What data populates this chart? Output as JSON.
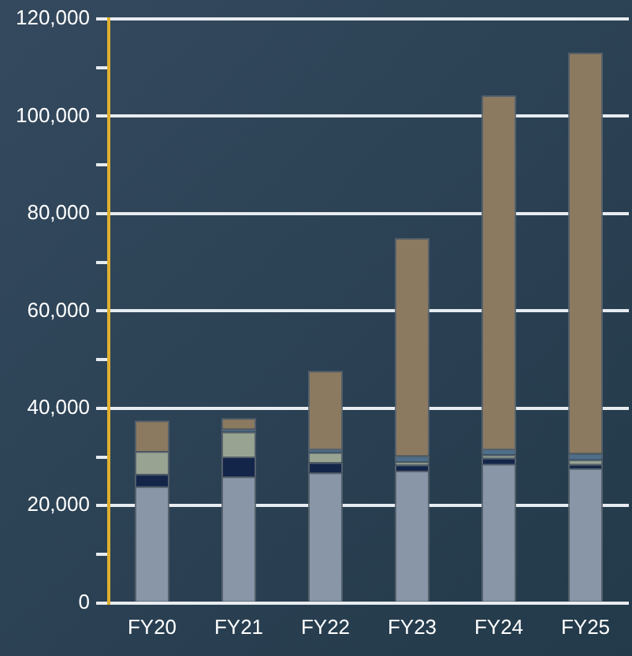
{
  "chart_data": {
    "type": "bar",
    "stacked": true,
    "categories": [
      "FY20",
      "FY21",
      "FY22",
      "FY23",
      "FY24",
      "FY25"
    ],
    "series": [
      {
        "color": "#8896a8",
        "values": [
          24000,
          26000,
          26800,
          27200,
          28600,
          27700
        ]
      },
      {
        "color": "#14254a",
        "values": [
          2500,
          4100,
          2100,
          1200,
          1200,
          800
        ]
      },
      {
        "color": "#98a392",
        "values": [
          4700,
          5100,
          2100,
          700,
          700,
          1000
        ]
      },
      {
        "color": "#4e6e8a",
        "values": [
          null,
          600,
          700,
          1200,
          1200,
          1300
        ]
      },
      {
        "color": "#8c7a60",
        "values": [
          6300,
          2200,
          16000,
          44700,
          72600,
          82300
        ]
      }
    ],
    "ylim": [
      0,
      120000
    ],
    "yticks": [
      0,
      {
        "value": 10000,
        "label": null
      },
      "20,000",
      {
        "value": 30000,
        "label": null
      },
      {
        "value": 40000,
        "label": "40,000"
      },
      {
        "value": 50000,
        "label": null
      },
      {
        "value": 60000,
        "label": "60,000"
      },
      {
        "value": 70000,
        "label": null
      },
      {
        "value": 80000,
        "label": "80,000"
      },
      {
        "value": 90000,
        "label": null
      },
      {
        "value": 100000,
        "label": "100,000"
      },
      {
        "value": 110000,
        "label": null
      },
      {
        "value": 120000,
        "label": "120,000"
      }
    ],
    "grid": "y",
    "legend": false
  }
}
